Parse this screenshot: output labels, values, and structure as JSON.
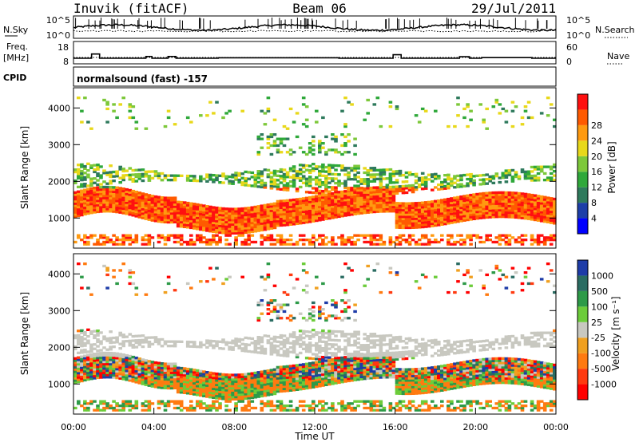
{
  "header": {
    "station": "Inuvik (fitACF)",
    "beam": "Beam 06",
    "date": "29/Jul/2011"
  },
  "panels": {
    "noise": {
      "left_label": "N.Sky",
      "right_label": "N.Search",
      "left_ticks": [
        "10^5",
        "10^0"
      ],
      "right_ticks": [
        "10^5",
        "10^0"
      ]
    },
    "freq": {
      "left_label_1": "Freq.",
      "left_label_2": "[MHz]",
      "left_ticks": [
        "18",
        "8"
      ],
      "right_label": "Nave",
      "right_ticks": [
        "60",
        "0"
      ]
    },
    "cpid": {
      "label": "CPID",
      "value": "normalsound (fast) -157"
    }
  },
  "chart_data": [
    {
      "type": "heatmap",
      "quantity": "power",
      "xlabel": "Time UT",
      "ylabel": "Slant Range [km]",
      "xlim": [
        "00:00",
        "24:00"
      ],
      "x_ticks": [
        "00:00",
        "04:00",
        "08:00",
        "12:00",
        "16:00",
        "20:00",
        "00:00"
      ],
      "y_ticks": [
        1000,
        2000,
        3000,
        4000
      ],
      "ylim": [
        180,
        4550
      ],
      "colorbar": {
        "label": "Power [dB]",
        "tick_labels": [
          "4",
          "8",
          "12",
          "16",
          "20",
          "24",
          "28"
        ],
        "range": [
          0,
          30
        ],
        "colors": [
          "#0000ff",
          "#1d3fa8",
          "#2e7a5c",
          "#2fa83a",
          "#7dc83a",
          "#e8d81a",
          "#ff9a10",
          "#ff5a00",
          "#ff1010"
        ]
      }
    },
    {
      "type": "heatmap",
      "quantity": "velocity",
      "xlabel": "Time UT",
      "ylabel": "Slant Range [km]",
      "xlim": [
        "00:00",
        "24:00"
      ],
      "x_ticks": [
        "00:00",
        "04:00",
        "08:00",
        "12:00",
        "16:00",
        "20:00",
        "00:00"
      ],
      "y_ticks": [
        1000,
        2000,
        3000,
        4000
      ],
      "ylim": [
        180,
        4550
      ],
      "colorbar": {
        "label": "Velocity [m s⁻¹]",
        "tick_labels": [
          "1000",
          "500",
          "100",
          "25",
          "-25",
          "-100",
          "-500",
          "-1000"
        ],
        "colors": [
          "#1e3ca8",
          "#2a6c62",
          "#2d9a48",
          "#6ccc3a",
          "#c8c8c0",
          "#f0a020",
          "#ff7a10",
          "#ff3a10",
          "#ff0000"
        ]
      }
    }
  ],
  "colors": {
    "ground_scatter": "#c8c8c0"
  }
}
